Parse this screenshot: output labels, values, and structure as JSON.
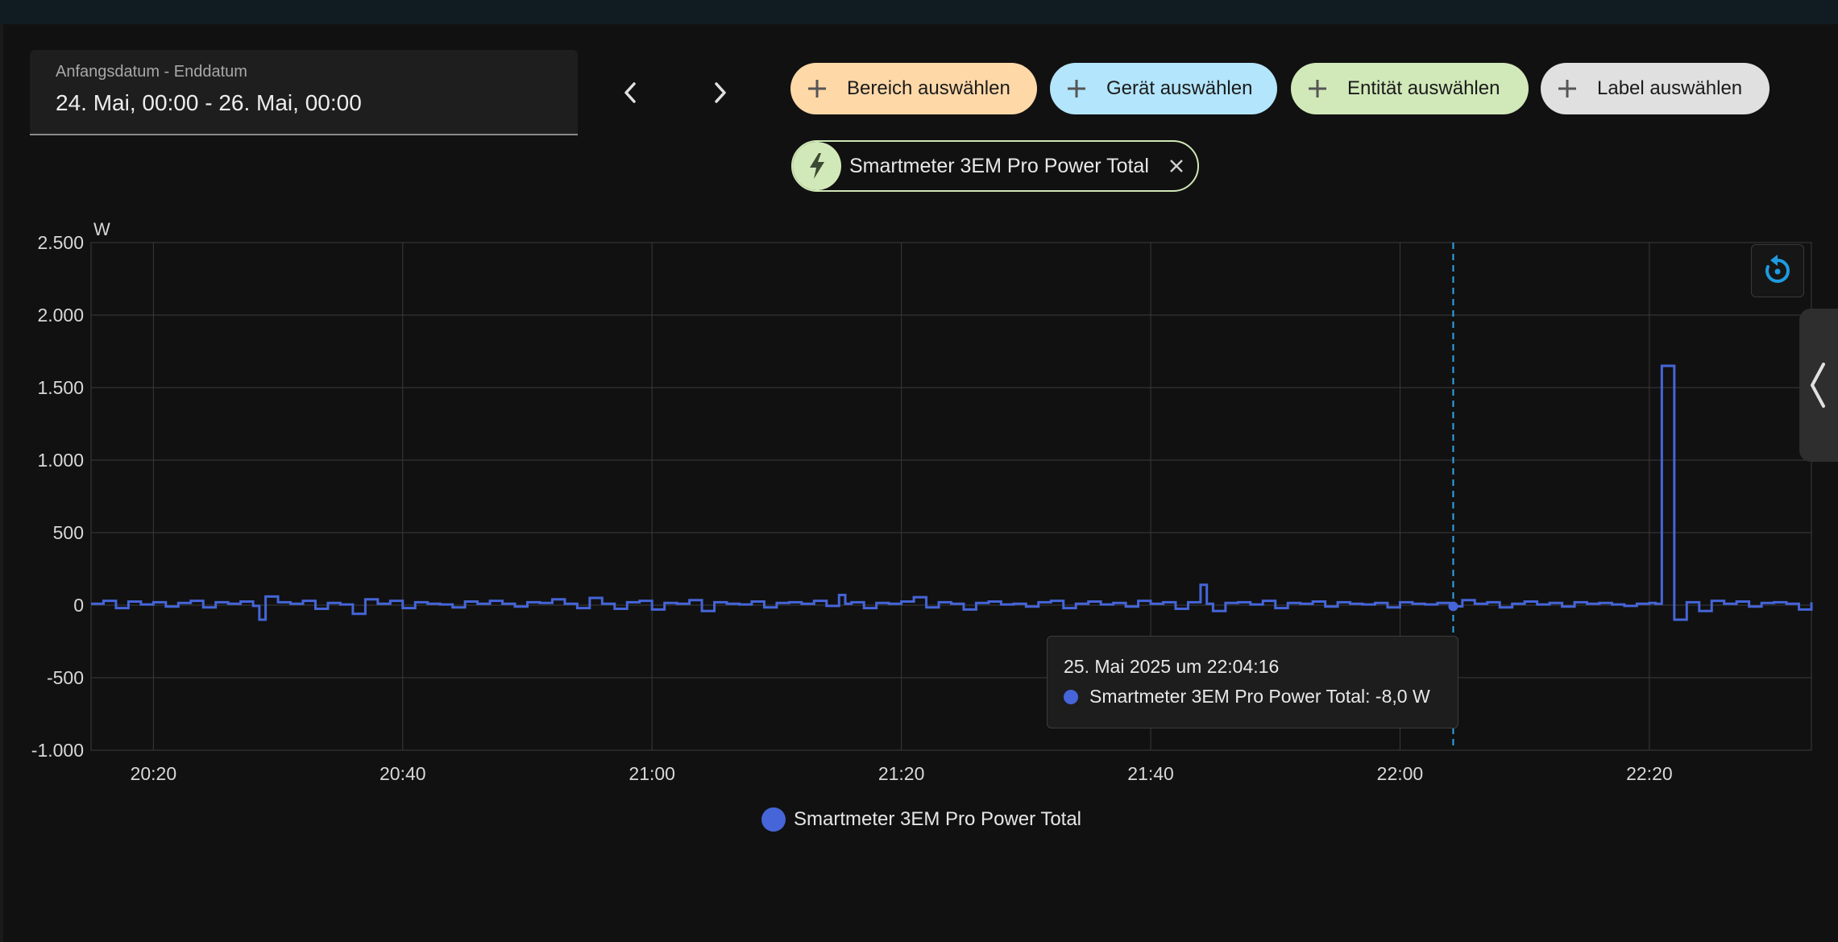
{
  "date_range": {
    "label": "Anfangsdatum - Enddatum",
    "value": "24. Mai, 00:00 - 26. Mai, 00:00"
  },
  "nav": {
    "prev_icon": "chevron-left-icon",
    "next_icon": "chevron-right-icon"
  },
  "target_chips": [
    {
      "name": "area-chip",
      "label": "Bereich auswählen",
      "color": "#ffd8a8"
    },
    {
      "name": "device-chip",
      "label": "Gerät auswählen",
      "color": "#b3e5fc"
    },
    {
      "name": "entity-select-chip",
      "label": "Entität auswählen",
      "color": "#d1e9b9"
    },
    {
      "name": "label-chip",
      "label": "Label auswählen",
      "color": "#e0e0e0"
    }
  ],
  "selected_entity": {
    "name": "Smartmeter 3EM Pro Power Total",
    "icon": "lightning-bolt-icon",
    "chip_color": "#d1e9b9"
  },
  "tooltip": {
    "title": "25. Mai 2025 um 22:04:16",
    "row": "Smartmeter 3EM Pro Power Total: -8,0 W"
  },
  "legend": {
    "label": "Smartmeter 3EM Pro Power Total"
  },
  "colors": {
    "series": "#4565d8",
    "cursor": "#2ea6e8",
    "reset": "#1e9be0"
  },
  "chart_data": {
    "type": "line",
    "unit": "W",
    "ylim": [
      -1000,
      2500
    ],
    "y_ticks": [
      -1000,
      -500,
      0,
      500,
      1000,
      1500,
      2000,
      2500
    ],
    "y_tick_labels": [
      "-1.000",
      "-500",
      "0",
      "500",
      "1.000",
      "1.500",
      "2.000",
      "2.500"
    ],
    "xlim": [
      "20:15",
      "22:33"
    ],
    "x_ticks": [
      "20:20",
      "20:40",
      "21:00",
      "21:20",
      "21:40",
      "22:00",
      "22:20"
    ],
    "grid": true,
    "step": true,
    "cursor_time": "22:04:16",
    "series": [
      {
        "name": "Smartmeter 3EM Pro Power Total",
        "x": [
          "20:15",
          "20:16",
          "20:17",
          "20:18",
          "20:19",
          "20:20",
          "20:21",
          "20:22",
          "20:23",
          "20:24",
          "20:25",
          "20:26",
          "20:27",
          "20:28",
          "20:28:30",
          "20:29",
          "20:30",
          "20:31",
          "20:32",
          "20:33",
          "20:34",
          "20:35",
          "20:36",
          "20:37",
          "20:38",
          "20:39",
          "20:40",
          "20:41",
          "20:42",
          "20:43",
          "20:44",
          "20:45",
          "20:46",
          "20:47",
          "20:48",
          "20:49",
          "20:50",
          "20:51",
          "20:52",
          "20:53",
          "20:54",
          "20:55",
          "20:56",
          "20:57",
          "20:58",
          "20:59",
          "21:00",
          "21:01",
          "21:02",
          "21:03",
          "21:04",
          "21:05",
          "21:06",
          "21:07",
          "21:08",
          "21:09",
          "21:10",
          "21:11",
          "21:12",
          "21:13",
          "21:14",
          "21:15",
          "21:15:30",
          "21:16",
          "21:17",
          "21:18",
          "21:19",
          "21:20",
          "21:21",
          "21:22",
          "21:23",
          "21:24",
          "21:25",
          "21:26",
          "21:27",
          "21:28",
          "21:29",
          "21:30",
          "21:31",
          "21:32",
          "21:33",
          "21:34",
          "21:35",
          "21:36",
          "21:37",
          "21:38",
          "21:39",
          "21:40",
          "21:41",
          "21:42",
          "21:43",
          "21:44",
          "21:44:30",
          "21:45",
          "21:46",
          "21:47",
          "21:48",
          "21:49",
          "21:50",
          "21:51",
          "21:52",
          "21:53",
          "21:54",
          "21:55",
          "21:56",
          "21:57",
          "21:58",
          "21:59",
          "22:00",
          "22:01",
          "22:02",
          "22:03",
          "22:04",
          "22:05",
          "22:06",
          "22:07",
          "22:08",
          "22:09",
          "22:10",
          "22:11",
          "22:12",
          "22:13",
          "22:14",
          "22:15",
          "22:16",
          "22:17",
          "22:18",
          "22:19",
          "22:20",
          "22:20:30",
          "22:21",
          "22:21:30",
          "22:22",
          "22:23",
          "22:24",
          "22:25",
          "22:26",
          "22:27",
          "22:28",
          "22:29",
          "22:30",
          "22:31",
          "22:32",
          "22:33"
        ],
        "values": [
          10,
          30,
          -20,
          25,
          5,
          20,
          -10,
          15,
          30,
          -15,
          20,
          10,
          25,
          -5,
          -100,
          60,
          20,
          10,
          30,
          -25,
          15,
          5,
          -60,
          40,
          10,
          30,
          -20,
          20,
          10,
          5,
          -15,
          25,
          10,
          30,
          10,
          -10,
          20,
          15,
          40,
          10,
          -20,
          50,
          10,
          -25,
          20,
          30,
          -30,
          15,
          10,
          35,
          -40,
          20,
          10,
          5,
          25,
          -15,
          15,
          20,
          10,
          30,
          -5,
          70,
          10,
          20,
          -20,
          15,
          10,
          25,
          55,
          -15,
          20,
          10,
          -30,
          15,
          25,
          5,
          10,
          -10,
          20,
          30,
          -20,
          10,
          25,
          5,
          15,
          -10,
          30,
          10,
          20,
          -25,
          20,
          140,
          10,
          -40,
          15,
          20,
          5,
          30,
          -20,
          15,
          10,
          25,
          -10,
          20,
          10,
          5,
          15,
          -15,
          20,
          10,
          5,
          15,
          -8,
          35,
          10,
          20,
          -15,
          10,
          25,
          5,
          15,
          -10,
          20,
          10,
          15,
          5,
          -5,
          10,
          15,
          10,
          1650,
          1650,
          -100,
          20,
          -40,
          30,
          10,
          25,
          -10,
          15,
          20,
          10,
          -30,
          20
        ]
      }
    ]
  }
}
